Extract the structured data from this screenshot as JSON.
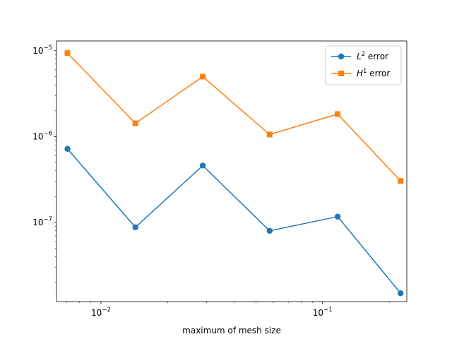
{
  "chart_data": {
    "type": "line",
    "title": "",
    "xlabel": "maximum of mesh size",
    "ylabel": "",
    "xscale": "log",
    "yscale": "log",
    "xlim": [
      0.0063,
      0.24
    ],
    "ylim": [
      1.2e-08,
      1.3e-05
    ],
    "grid": false,
    "legend_position": "top-right",
    "x": [
      0.00706,
      0.0143,
      0.0288,
      0.0577,
      0.117,
      0.225
    ],
    "series": [
      {
        "name": "L² error",
        "label_base": "L",
        "label_sup": "2",
        "label_rest": " error",
        "color": "#1f77b4",
        "marker": "circle",
        "values": [
          7.2e-07,
          8.8e-08,
          4.6e-07,
          8e-08,
          1.17e-07,
          1.5e-08
        ]
      },
      {
        "name": "H¹ error",
        "label_base": "H",
        "label_sup": "1",
        "label_rest": " error",
        "color": "#ff7f0e",
        "marker": "square",
        "values": [
          9.4e-06,
          1.43e-06,
          5e-06,
          1.06e-06,
          1.83e-06,
          3.05e-07
        ]
      }
    ],
    "x_ticks": [
      {
        "value": 0.01,
        "base": "10",
        "exp": "−2"
      },
      {
        "value": 0.1,
        "base": "10",
        "exp": "−1"
      }
    ],
    "y_ticks": [
      {
        "value": 1e-07,
        "base": "10",
        "exp": "−7"
      },
      {
        "value": 1e-06,
        "base": "10",
        "exp": "−6"
      },
      {
        "value": 1e-05,
        "base": "10",
        "exp": "−5"
      }
    ]
  }
}
